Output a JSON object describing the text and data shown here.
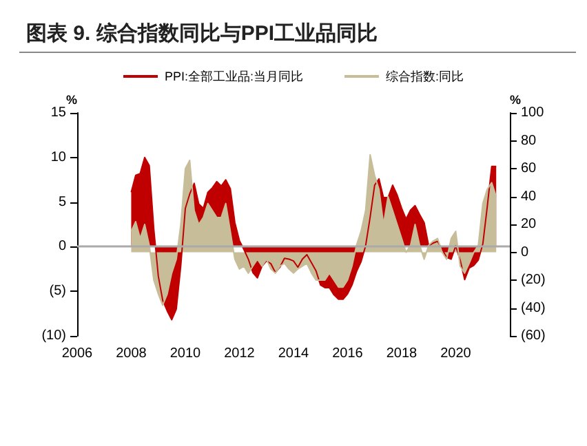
{
  "chart_data": {
    "type": "area",
    "title": "图表 9. 综合指数同比与PPI工业品同比",
    "ylabel": "%",
    "y2label": "%",
    "x": [
      "2008-01",
      "2008-03",
      "2008-05",
      "2008-07",
      "2008-09",
      "2008-11",
      "2009-01",
      "2009-03",
      "2009-05",
      "2009-07",
      "2009-09",
      "2009-11",
      "2010-01",
      "2010-03",
      "2010-05",
      "2010-07",
      "2010-09",
      "2010-11",
      "2011-01",
      "2011-03",
      "2011-05",
      "2011-07",
      "2011-09",
      "2011-11",
      "2012-01",
      "2012-03",
      "2012-05",
      "2012-07",
      "2012-09",
      "2012-11",
      "2013-01",
      "2013-03",
      "2013-05",
      "2013-07",
      "2013-09",
      "2013-11",
      "2014-01",
      "2014-03",
      "2014-05",
      "2014-07",
      "2014-09",
      "2014-11",
      "2015-01",
      "2015-03",
      "2015-05",
      "2015-07",
      "2015-09",
      "2015-11",
      "2016-01",
      "2016-03",
      "2016-05",
      "2016-07",
      "2016-09",
      "2016-11",
      "2017-01",
      "2017-03",
      "2017-05",
      "2017-07",
      "2017-09",
      "2017-11",
      "2018-01",
      "2018-03",
      "2018-05",
      "2018-07",
      "2018-09",
      "2018-11",
      "2019-01",
      "2019-03",
      "2019-05",
      "2019-07",
      "2019-09",
      "2019-11",
      "2020-01",
      "2020-03",
      "2020-05",
      "2020-07",
      "2020-09",
      "2020-11",
      "2021-01",
      "2021-03",
      "2021-05",
      "2021-07"
    ],
    "series": [
      {
        "name": "PPI:全部工业品:当月同比",
        "color": "#c00000",
        "values": [
          6.1,
          8.0,
          8.2,
          10.0,
          9.1,
          2.0,
          -3.3,
          -6.0,
          -7.2,
          -8.2,
          -7.0,
          -2.1,
          4.3,
          5.9,
          7.1,
          4.8,
          4.3,
          6.1,
          6.6,
          7.3,
          6.8,
          7.5,
          6.5,
          2.7,
          0.7,
          -0.3,
          -1.4,
          -2.9,
          -3.5,
          -2.2,
          -1.6,
          -1.9,
          -2.9,
          -2.3,
          -1.3,
          -1.4,
          -1.6,
          -2.3,
          -1.4,
          -0.9,
          -1.8,
          -2.7,
          -4.3,
          -4.6,
          -4.6,
          -5.4,
          -5.9,
          -5.9,
          -5.3,
          -4.3,
          -2.8,
          -1.7,
          0.1,
          3.3,
          6.9,
          7.6,
          5.5,
          5.5,
          6.9,
          5.8,
          4.3,
          3.1,
          4.1,
          4.6,
          3.6,
          2.7,
          0.1,
          0.4,
          0.6,
          -0.3,
          -1.2,
          -1.4,
          0.1,
          -1.5,
          -3.7,
          -2.4,
          -2.1,
          -1.5,
          0.3,
          4.4,
          9.0,
          9.0
        ]
      },
      {
        "name": "综合指数:同比",
        "color": "#c8bd99",
        "axis": "y2",
        "values": [
          15,
          22,
          10,
          20,
          5,
          -20,
          -30,
          -38,
          -30,
          -15,
          -5,
          20,
          60,
          66,
          30,
          20,
          25,
          35,
          30,
          25,
          25,
          35,
          15,
          -5,
          -12,
          -10,
          -15,
          -10,
          -5,
          -10,
          -5,
          -12,
          -15,
          -10,
          -8,
          -12,
          -15,
          -12,
          -10,
          -8,
          -15,
          -20,
          -20,
          -20,
          -15,
          -20,
          -25,
          -25,
          -20,
          -10,
          5,
          15,
          30,
          70,
          55,
          45,
          20,
          40,
          30,
          20,
          10,
          0,
          5,
          20,
          5,
          -5,
          5,
          8,
          10,
          0,
          -5,
          10,
          15,
          -10,
          -15,
          -8,
          0,
          5,
          35,
          45,
          50,
          40
        ]
      }
    ],
    "xlim": [
      "2006",
      "2022"
    ],
    "xticks": [
      "2006",
      "2008",
      "2010",
      "2012",
      "2014",
      "2016",
      "2018",
      "2020"
    ],
    "ylim": [
      -10,
      15
    ],
    "yticks": [
      {
        "value": -10,
        "label": "(10)"
      },
      {
        "value": -5,
        "label": "(5)"
      },
      0,
      5,
      10,
      15
    ],
    "y2lim": [
      -60,
      100
    ],
    "y2ticks": [
      {
        "value": -60,
        "label": "(60)"
      },
      {
        "value": -40,
        "label": "(40)"
      },
      {
        "value": -20,
        "label": "(20)"
      },
      0,
      20,
      40,
      60,
      80,
      100
    ],
    "ref_lines": [
      {
        "axis": "y",
        "value": 0,
        "color": "#aaaaaa"
      }
    ],
    "grid": false,
    "legend": "top"
  }
}
